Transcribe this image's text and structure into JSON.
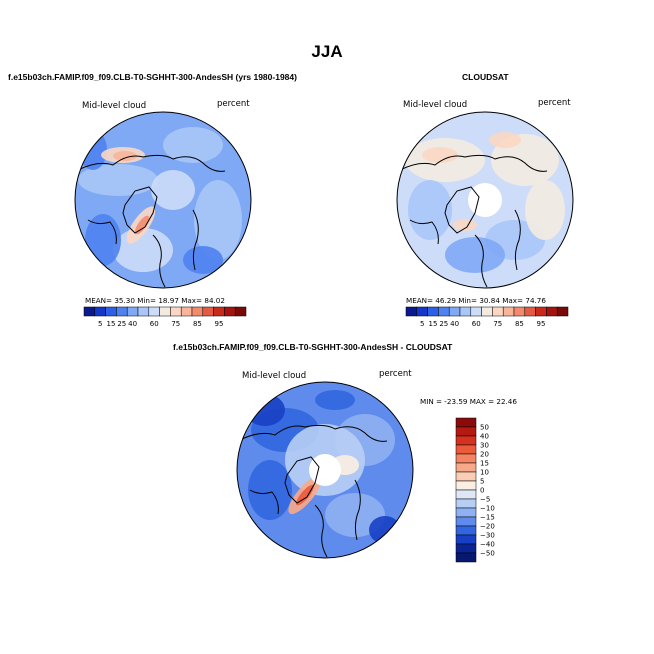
{
  "page_title": "JJA",
  "panels": {
    "model": {
      "title": "f.e15b03ch.FAMIP.f09_f09.CLB-T0-SGHHT-300-AndesSH (yrs 1980-1984)",
      "variable": "Mid-level cloud",
      "units": "percent",
      "stats": {
        "mean_label": "MEAN=",
        "mean": "35.30",
        "min_label": "Min=",
        "min": "18.97",
        "max_label": "Max=",
        "max": "84.02"
      }
    },
    "obs": {
      "title": "CLOUDSAT",
      "variable": "Mid-level cloud",
      "units": "percent",
      "stats": {
        "mean_label": "MEAN=",
        "mean": "46.29",
        "min_label": "Min=",
        "min": "30.84",
        "max_label": "Max=",
        "max": "74.76"
      }
    },
    "diff": {
      "title": "f.e15b03ch.FAMIP.f09_f09.CLB-T0-SGHHT-300-AndesSH - CLOUDSAT",
      "variable": "Mid-level cloud",
      "units": "percent",
      "stats_text": "MIN = -23.59 MAX =  22.46"
    }
  },
  "chart_data": [
    {
      "type": "heatmap",
      "title": "f.e15b03ch.FAMIP.f09_f09.CLB-T0-SGHHT-300-AndesSH (yrs 1980-1984)",
      "projection": "north polar stereographic",
      "variable": "Mid-level cloud",
      "units": "percent",
      "colorbar": {
        "orientation": "horizontal",
        "levels": [
          "5",
          "15",
          "25",
          "40",
          "60",
          "75",
          "85",
          "95"
        ],
        "colors": [
          "#0a1a8c",
          "#1437c8",
          "#2d60e6",
          "#4f82f0",
          "#7fa8f5",
          "#a9c6f8",
          "#cddcf8",
          "#f3ebe0",
          "#fbd7c3",
          "#f8b59a",
          "#f28b6e",
          "#e45b43",
          "#c82a1c",
          "#a3140f",
          "#7a0a08"
        ]
      },
      "stats": {
        "mean": 35.3,
        "min": 18.97,
        "max": 84.02
      }
    },
    {
      "type": "heatmap",
      "title": "CLOUDSAT",
      "projection": "north polar stereographic",
      "variable": "Mid-level cloud",
      "units": "percent",
      "colorbar": {
        "orientation": "horizontal",
        "levels": [
          "5",
          "15",
          "25",
          "40",
          "60",
          "75",
          "85",
          "95"
        ],
        "colors": [
          "#0a1a8c",
          "#1437c8",
          "#2d60e6",
          "#4f82f0",
          "#7fa8f5",
          "#a9c6f8",
          "#cddcf8",
          "#f3ebe0",
          "#fbd7c3",
          "#f8b59a",
          "#f28b6e",
          "#e45b43",
          "#c82a1c",
          "#a3140f",
          "#7a0a08"
        ]
      },
      "stats": {
        "mean": 46.29,
        "min": 30.84,
        "max": 74.76
      }
    },
    {
      "type": "heatmap",
      "title": "f.e15b03ch.FAMIP.f09_f09.CLB-T0-SGHHT-300-AndesSH - CLOUDSAT",
      "projection": "north polar stereographic",
      "variable": "Mid-level cloud",
      "units": "percent",
      "colorbar": {
        "orientation": "vertical",
        "levels": [
          "50",
          "40",
          "30",
          "20",
          "15",
          "10",
          "5",
          "0",
          "−5",
          "−10",
          "−15",
          "−20",
          "−30",
          "−40",
          "−50"
        ],
        "colors": [
          "#8b0a0a",
          "#b51a12",
          "#d6301e",
          "#ec5a3c",
          "#f48462",
          "#f8a98a",
          "#fbcdb5",
          "#fbeee2",
          "#dde7f6",
          "#b8cff5",
          "#8fb0f2",
          "#5f8cec",
          "#3266e0",
          "#1840c4",
          "#0a2496",
          "#061870"
        ]
      },
      "stats": {
        "min": -23.59,
        "max": 22.46
      }
    }
  ]
}
